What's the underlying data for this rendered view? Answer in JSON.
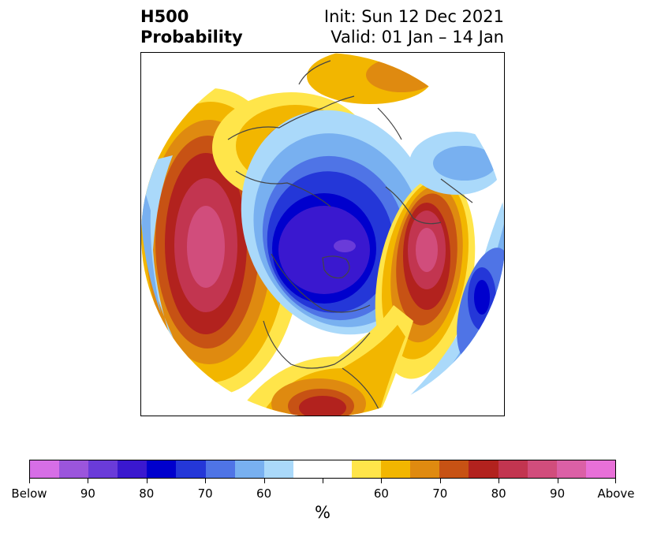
{
  "title": {
    "left_line1": "H500",
    "left_line2": "Probability",
    "right_line1": "Init: Sun 12 Dec 2021",
    "right_line2": "Valid: 01 Jan – 14 Jan"
  },
  "map": {
    "projection": "polar-stereographic-north",
    "background_color": "#ffffff",
    "coastline_color": "#444444"
  },
  "colorbar": {
    "unit": "%",
    "colors": [
      "#d66ee6",
      "#9b55dc",
      "#6a3bd9",
      "#3a18cf",
      "#0000cd",
      "#2437d8",
      "#4f74e6",
      "#78b0f0",
      "#aad9fa",
      "#ffffff",
      "#ffe54a",
      "#f2b600",
      "#df8a10",
      "#c75214",
      "#b2221e",
      "#c23550",
      "#d14d7c",
      "#db60a6",
      "#e870d8"
    ],
    "tick_labels": [
      "Below",
      "90",
      "80",
      "70",
      "60",
      "",
      "60",
      "70",
      "80",
      "90",
      "Above"
    ]
  }
}
